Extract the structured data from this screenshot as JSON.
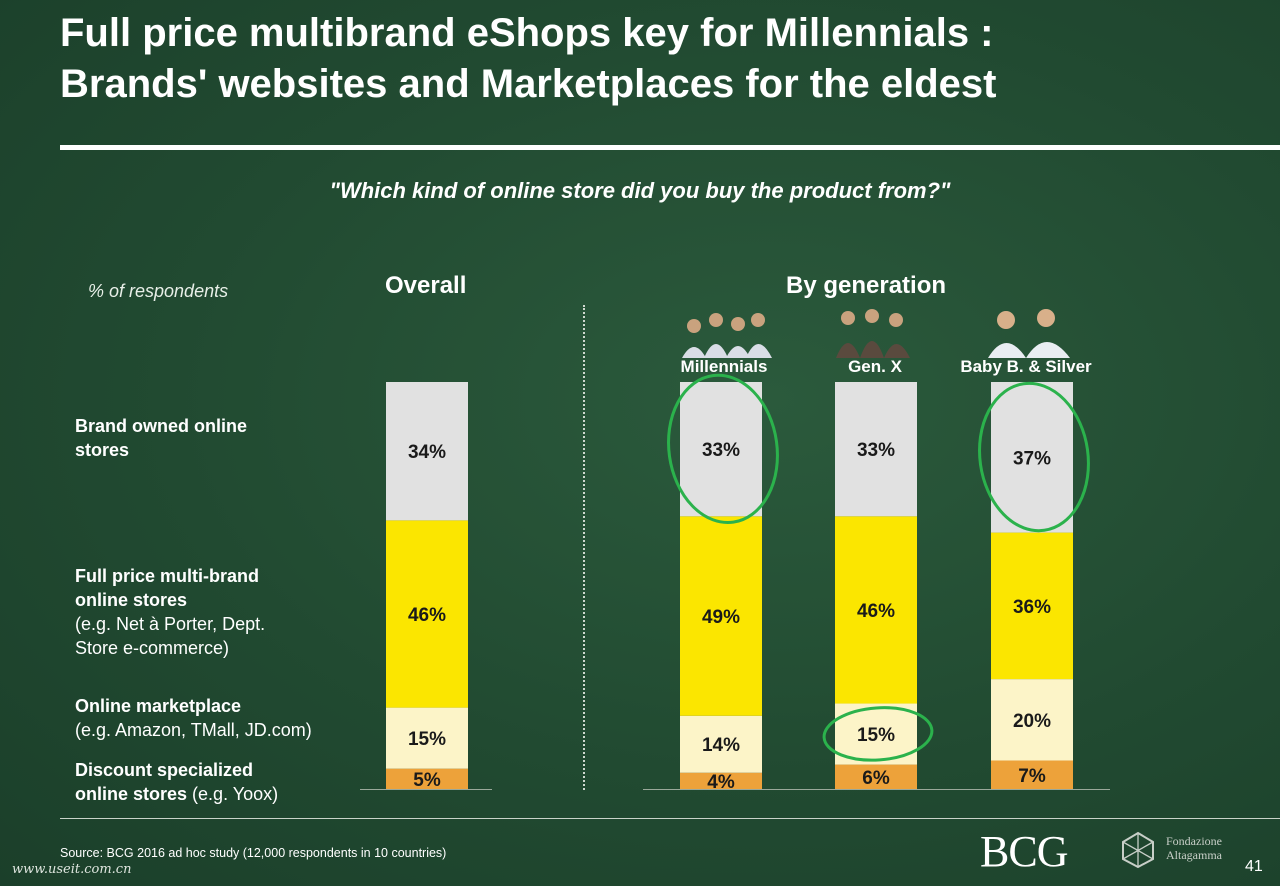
{
  "title_line1": "Full price multibrand eShops key for Millennials :",
  "title_line2": "Brands' websites and Marketplaces for the eldest",
  "question": "\"Which kind of online store did you buy the product from?\"",
  "unit_label": "% of respondents",
  "overall_header": "Overall",
  "generation_header": "By generation",
  "row_labels": {
    "brand": "Brand owned online stores",
    "fullprice_bold": "Full price multi-brand online stores",
    "fullprice_note": "(e.g. Net à Porter, Dept. Store e-commerce)",
    "marketplace_bold": "Online marketplace",
    "marketplace_note": "(e.g. Amazon, TMall, JD.com)",
    "discount_bold": "Discount specialized online stores",
    "discount_note": "(e.g. Yoox)"
  },
  "source": "Source: BCG 2016 ad hoc study (12,000 respondents in 10 countries)",
  "watermark": "www.useit.com.cn",
  "logo_bcg": "BCG",
  "logo_fondazione_1": "Fondazione",
  "logo_fondazione_2": "Altagamma",
  "page_number": "41",
  "colors": {
    "brand": "#e1e1e1",
    "fullprice": "#fbe600",
    "marketplace": "#fcf4c8",
    "discount": "#eda23a",
    "highlight": "#2bb24c"
  },
  "chart_data": {
    "type": "bar",
    "stacked": true,
    "categories": [
      "Overall",
      "Millennials",
      "Gen. X",
      "Baby B. & Silver"
    ],
    "series": [
      {
        "name": "Discount specialized online stores",
        "values": [
          5,
          4,
          6,
          7
        ]
      },
      {
        "name": "Online marketplace",
        "values": [
          15,
          14,
          15,
          20
        ]
      },
      {
        "name": "Full price multi-brand online stores",
        "values": [
          46,
          49,
          46,
          36
        ]
      },
      {
        "name": "Brand owned online stores",
        "values": [
          34,
          33,
          33,
          37
        ]
      }
    ],
    "value_labels": [
      [
        "5%",
        "4%",
        "6%",
        "7%"
      ],
      [
        "15%",
        "14%",
        "15%",
        "20%"
      ],
      [
        "46%",
        "49%",
        "46%",
        "36%"
      ],
      [
        "34%",
        "33%",
        "33%",
        "37%"
      ]
    ],
    "ylim": [
      0,
      100
    ],
    "highlighted": [
      [
        2,
        1
      ],
      [
        3,
        3
      ],
      [
        1,
        3
      ]
    ]
  }
}
